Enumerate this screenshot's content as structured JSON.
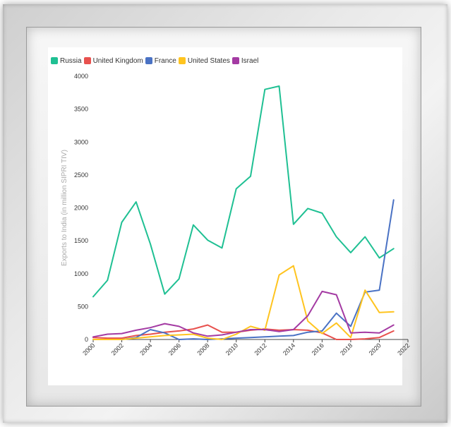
{
  "chart_data": {
    "type": "line",
    "title": "",
    "xlabel": "",
    "ylabel": "Exports to India (in million SIPRI TIV)",
    "xlim": [
      2000,
      2022
    ],
    "ylim": [
      0,
      4000
    ],
    "x_ticks": [
      "2000",
      "2002",
      "2004",
      "2006",
      "2008",
      "2010",
      "2012",
      "2014",
      "2016",
      "2018",
      "2020",
      "2022"
    ],
    "y_ticks": [
      "0",
      "500",
      "1000",
      "1500",
      "2000",
      "2500",
      "3000",
      "3500",
      "4000"
    ],
    "legend_position": "top-left",
    "x": [
      2000,
      2001,
      2002,
      2003,
      2004,
      2005,
      2006,
      2007,
      2008,
      2009,
      2010,
      2011,
      2012,
      2013,
      2014,
      2015,
      2016,
      2017,
      2018,
      2019,
      2020,
      2021
    ],
    "series": [
      {
        "name": "Russia",
        "color": "#1fc093",
        "values": [
          650,
          900,
          1780,
          2090,
          1450,
          690,
          920,
          1740,
          1510,
          1390,
          2290,
          2480,
          3800,
          3850,
          1750,
          1990,
          1920,
          1560,
          1320,
          1560,
          1240,
          1380
        ]
      },
      {
        "name": "United Kingdom",
        "color": "#e8514e",
        "values": [
          30,
          20,
          20,
          60,
          80,
          110,
          130,
          160,
          220,
          110,
          110,
          140,
          160,
          140,
          150,
          140,
          100,
          0,
          0,
          10,
          30,
          130
        ]
      },
      {
        "name": "France",
        "color": "#4a72c4",
        "values": [
          0,
          0,
          0,
          30,
          150,
          100,
          0,
          10,
          0,
          10,
          20,
          30,
          40,
          50,
          60,
          110,
          130,
          400,
          200,
          720,
          750,
          2120
        ]
      },
      {
        "name": "United States",
        "color": "#ffc41f",
        "values": [
          0,
          0,
          0,
          20,
          40,
          60,
          70,
          80,
          20,
          0,
          80,
          200,
          140,
          980,
          1120,
          280,
          90,
          250,
          30,
          750,
          410,
          420
        ]
      },
      {
        "name": "Israel",
        "color": "#a43ba3",
        "values": [
          40,
          80,
          90,
          140,
          180,
          240,
          200,
          100,
          50,
          70,
          110,
          150,
          150,
          120,
          150,
          360,
          730,
          680,
          100,
          110,
          100,
          220
        ]
      }
    ]
  }
}
